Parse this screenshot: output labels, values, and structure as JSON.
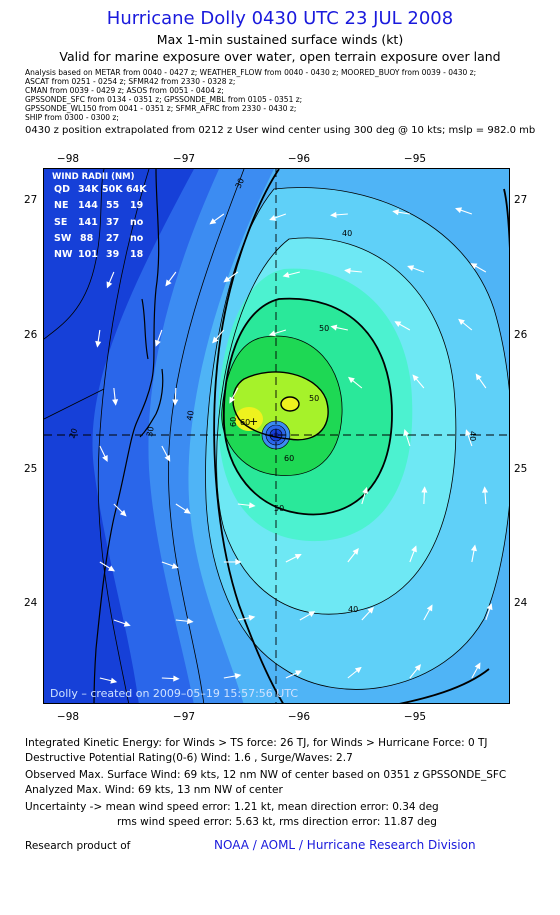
{
  "header": {
    "title": "Hurricane Dolly 0430 UTC 23 JUL 2008",
    "subtitle": "Max 1-min sustained surface winds (kt)",
    "valid": "Valid for marine exposure over water, open terrain exposure over land"
  },
  "analysis_lines": [
    "Analysis based on  METAR from 0040 - 0427 z;  WEATHER_FLOW from 0040 - 0430 z;  MOORED_BUOY from 0039 - 0430 z;",
    "ASCAT from 0251 - 0254 z;  SFMR42 from 2330 - 0328 z;",
    "CMAN from 0039 - 0429 z;  ASOS from 0051 - 0404 z;",
    "GPSSONDE_SFC from 0134 - 0351 z;  GPSSONDE_MBL from 0105 - 0351 z;",
    "GPSSONDE_WL150 from 0041 - 0351 z;  SFMR_AFRC from 2330 - 0430 z;",
    "SHIP from 0300 - 0300 z;"
  ],
  "position_note": "0430 z position extrapolated from 0212 z User wind center using 300 deg @ 10 kts; mslp = 982.0 mb",
  "map": {
    "lon_ticks": [
      "−98",
      "−97",
      "−96",
      "−95"
    ],
    "lat_ticks": [
      "27",
      "26",
      "25",
      "24"
    ],
    "contour_labels": [
      "30",
      "40",
      "50",
      "60",
      "20",
      "30",
      "40",
      "50",
      "60",
      "40",
      "40",
      "50",
      "60"
    ],
    "credit": "Dolly – created on 2009–05–19 15:57:56 UTC",
    "colors": {
      "deep_blue": "#1640d8",
      "blue": "#2a66ea",
      "mid_blue": "#3c8cf2",
      "light_blue": "#4fb4f6",
      "sky": "#5fd0f8",
      "cyan": "#6ee8f4",
      "aqua": "#4cf2d0",
      "sea_green": "#2ae89a",
      "green": "#1ed854",
      "yellow_green": "#a6f22a",
      "yellow": "#eef21e"
    }
  },
  "wind_radii": {
    "title": "WIND RADII (NM)",
    "header": [
      "QD",
      "34K",
      "50K",
      "64K"
    ],
    "rows": [
      [
        "NE",
        "144",
        "55",
        "19"
      ],
      [
        "SE",
        "141",
        "37",
        "no"
      ],
      [
        "SW",
        "88",
        "27",
        "no"
      ],
      [
        "NW",
        "101",
        "39",
        "18"
      ]
    ]
  },
  "info": {
    "ike": "Integrated Kinetic Energy:  for Winds > TS force: 26 TJ,  for Winds > Hurricane Force: 0 TJ",
    "dpr": "Destructive Potential Rating(0-6)   Wind: 1.6 , Surge/Waves: 2.7",
    "observed": "Observed Max. Surface Wind: 69 kts, 12 nm NW of center based on 0351 z GPSSONDE_SFC",
    "analyzed": "Analyzed Max. Wind: 69 kts, 13 nm NW of center",
    "uncertainty_1": "Uncertainty -> mean wind speed error: 1.21 kt,   mean direction error: 0.34 deg",
    "uncertainty_2": "rms wind speed error: 5.63 kt,   rms direction error: 11.87 deg",
    "research_product": "Research product of",
    "org": "NOAA / AOML / Hurricane Research Division"
  }
}
